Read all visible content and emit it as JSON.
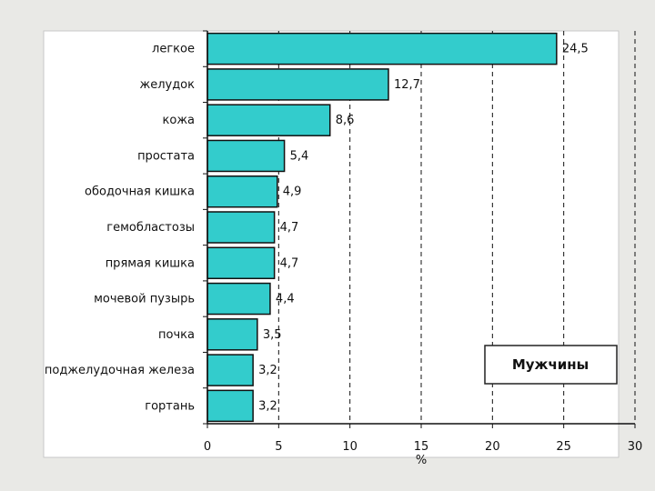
{
  "chart_data": {
    "type": "bar",
    "orientation": "horizontal",
    "title": "",
    "xlabel": "%",
    "ylabel": "",
    "xlim": [
      0,
      30
    ],
    "x_ticks": [
      0,
      5,
      10,
      15,
      20,
      25,
      30
    ],
    "grid": "vertical-dashed",
    "legend_text": "Мужчины",
    "legend_position": "bottom-right",
    "categories": [
      "легкое",
      "желудок",
      "кожа",
      "простата",
      "ободочная кишка",
      "гемобластозы",
      "прямая кишка",
      "мочевой пузырь",
      "почка",
      "поджелудочная железа",
      "гортань"
    ],
    "values": [
      24.5,
      12.7,
      8.6,
      5.4,
      4.9,
      4.7,
      4.7,
      4.4,
      3.5,
      3.2,
      3.2
    ],
    "value_labels": [
      "24,5",
      "12,7",
      "8,6",
      "5,4",
      "4,9",
      "4,7",
      "4,7",
      "4,4",
      "3,5",
      "3,2",
      "3,2"
    ],
    "bar_color": "#33cccc",
    "background_color": "#ffffff"
  }
}
